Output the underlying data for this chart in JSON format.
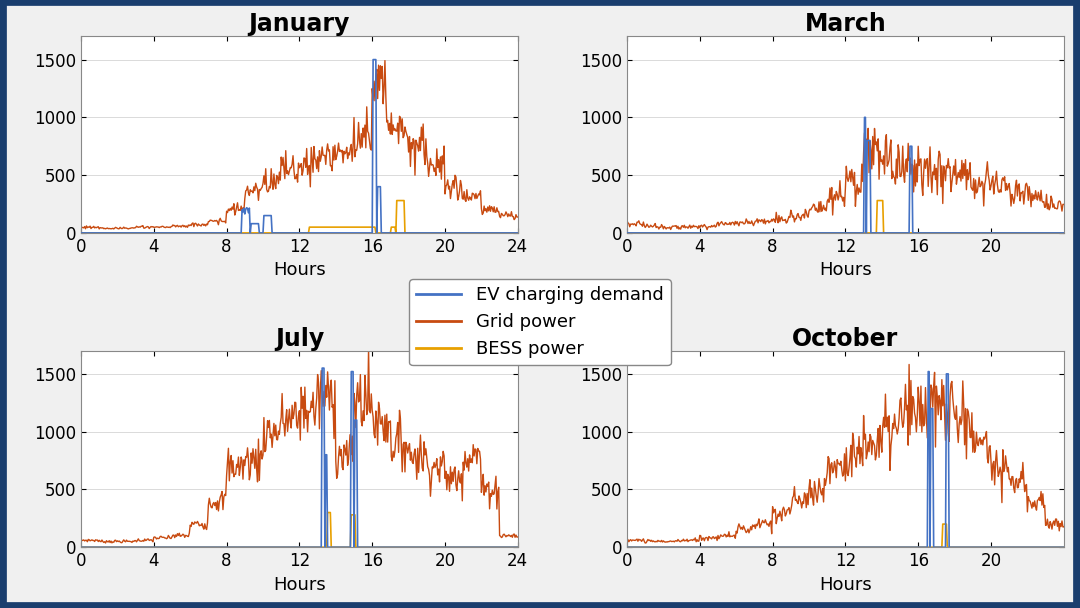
{
  "titles": [
    "January",
    "March",
    "July",
    "October"
  ],
  "xlabel": "Hours",
  "legend_labels": [
    "EV charging demand",
    "Grid power",
    "BESS power"
  ],
  "ev_color": "#4472C4",
  "grid_color": "#C84B11",
  "bess_color": "#E8A000",
  "fig_bg": "#F0F0F0",
  "plot_bg": "#FFFFFF",
  "border_color": "#1A3E6E",
  "ylim": [
    0,
    1700
  ],
  "yticks": [
    0,
    500,
    1000,
    1500
  ],
  "xticks_full": [
    0,
    4,
    8,
    12,
    16,
    20,
    24
  ],
  "xticks_partial": [
    0,
    4,
    8,
    12,
    16,
    20
  ],
  "title_fontsize": 17,
  "label_fontsize": 13,
  "tick_fontsize": 12,
  "legend_fontsize": 13,
  "lw_grid": 1.0,
  "lw_ev": 1.2,
  "lw_bess": 1.2
}
